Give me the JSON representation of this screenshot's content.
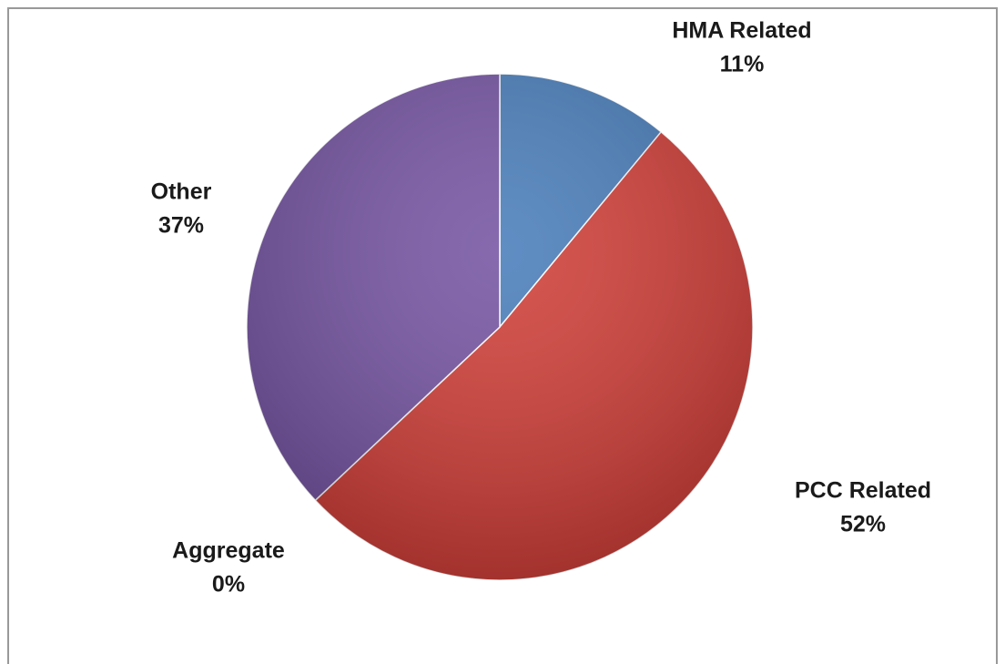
{
  "chart_data": {
    "type": "pie",
    "categories": [
      "HMA Related",
      "PCC Related",
      "Aggregate",
      "Other"
    ],
    "values": [
      11,
      52,
      0,
      37
    ],
    "value_labels": [
      "11%",
      "52%",
      "0%",
      "37%"
    ],
    "colors": [
      "#4a7ebb",
      "#d13f39",
      "#8dbd4b",
      "#7655a3"
    ]
  }
}
